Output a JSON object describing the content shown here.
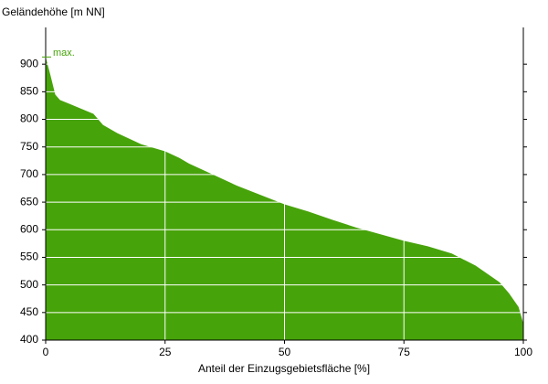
{
  "chart_data": {
    "type": "area",
    "ylabel": "Geländehöhe [m NN]",
    "xlabel": "Anteil der Einzugsgebietsfläche [%]",
    "x": [
      0,
      1,
      2,
      3,
      5,
      10,
      12,
      15,
      20,
      25,
      28,
      30,
      35,
      40,
      45,
      50,
      55,
      60,
      65,
      70,
      75,
      80,
      85,
      90,
      95,
      97,
      99,
      100
    ],
    "series": [
      {
        "name": "Geländehöhe",
        "color": "#47a30a",
        "values": [
          913,
          880,
          845,
          835,
          828,
          810,
          790,
          775,
          755,
          742,
          730,
          720,
          700,
          680,
          663,
          646,
          633,
          618,
          604,
          592,
          580,
          570,
          557,
          535,
          505,
          485,
          460,
          430
        ]
      }
    ],
    "annotation": {
      "text": "max.",
      "value": 913
    },
    "xlim": [
      0,
      100
    ],
    "xticks": [
      0,
      25,
      50,
      75,
      100
    ],
    "ylim": [
      400,
      950
    ],
    "yticks": [
      400,
      450,
      500,
      550,
      600,
      650,
      700,
      750,
      800,
      850,
      900
    ],
    "grid": true
  }
}
